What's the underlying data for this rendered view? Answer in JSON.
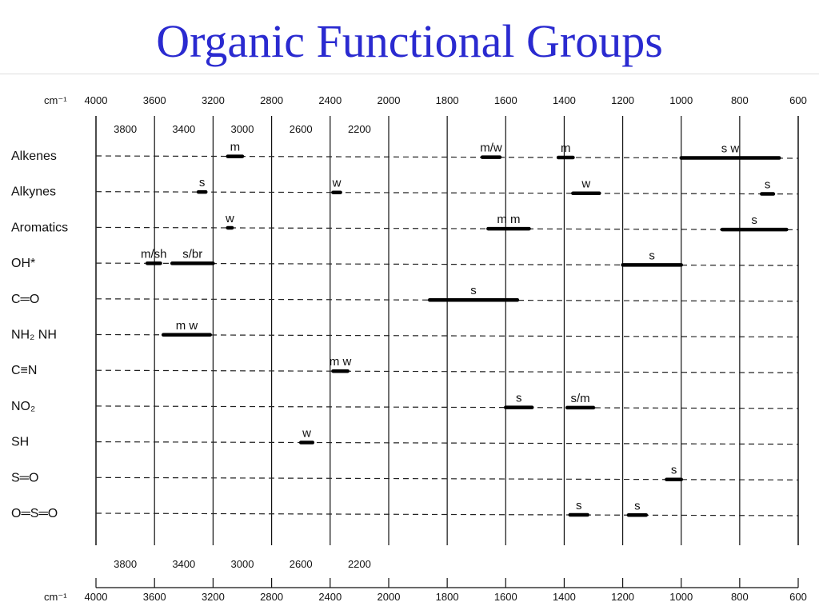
{
  "title": "Organic Functional Groups",
  "chart_data": {
    "type": "bar",
    "unit_label": "cm⁻¹",
    "x_major_ticks": [
      4000,
      3600,
      3200,
      2800,
      2400,
      2000,
      1800,
      1600,
      1400,
      1200,
      1000,
      800,
      600
    ],
    "x_minor_ticks": [
      3800,
      3400,
      3000,
      2600,
      2200
    ],
    "groups": [
      "Alkenes",
      "Alkynes",
      "Aromatics",
      "OH*",
      "C═O",
      "NH₂ NH",
      "C≡N",
      "NO₂",
      "SH",
      "S═O",
      "O═S═O"
    ],
    "bands": [
      {
        "group": "Alkenes",
        "from": 3100,
        "to": 3000,
        "label": "m"
      },
      {
        "group": "Alkenes",
        "from": 1680,
        "to": 1620,
        "label": "m/w"
      },
      {
        "group": "Alkenes",
        "from": 1420,
        "to": 1370,
        "label": "m"
      },
      {
        "group": "Alkenes",
        "from": 1000,
        "to": 665,
        "label": "s w"
      },
      {
        "group": "Alkynes",
        "from": 3300,
        "to": 3250,
        "label": "s"
      },
      {
        "group": "Alkynes",
        "from": 2380,
        "to": 2330,
        "label": "w"
      },
      {
        "group": "Alkynes",
        "from": 1370,
        "to": 1280,
        "label": "w"
      },
      {
        "group": "Alkynes",
        "from": 725,
        "to": 685,
        "label": "s"
      },
      {
        "group": "Aromatics",
        "from": 3100,
        "to": 3070,
        "label": "w"
      },
      {
        "group": "Aromatics",
        "from": 1660,
        "to": 1520,
        "label": "m m"
      },
      {
        "group": "Aromatics",
        "from": 860,
        "to": 640,
        "label": "s"
      },
      {
        "group": "OH*",
        "from": 3650,
        "to": 3560,
        "label": "m/sh"
      },
      {
        "group": "OH*",
        "from": 3480,
        "to": 3200,
        "label": "s/br"
      },
      {
        "group": "OH*",
        "from": 1200,
        "to": 1000,
        "label": "s"
      },
      {
        "group": "C═O",
        "from": 1860,
        "to": 1560,
        "label": "s"
      },
      {
        "group": "NH₂ NH",
        "from": 3540,
        "to": 3220,
        "label": "m w"
      },
      {
        "group": "C≡N",
        "from": 2380,
        "to": 2280,
        "label": "m w"
      },
      {
        "group": "NO₂",
        "from": 1600,
        "to": 1510,
        "label": "s"
      },
      {
        "group": "NO₂",
        "from": 1390,
        "to": 1300,
        "label": "s/m"
      },
      {
        "group": "SH",
        "from": 2600,
        "to": 2520,
        "label": "w"
      },
      {
        "group": "S═O",
        "from": 1050,
        "to": 1000,
        "label": "s"
      },
      {
        "group": "O═S═O",
        "from": 1380,
        "to": 1320,
        "label": "s"
      },
      {
        "group": "O═S═O",
        "from": 1180,
        "to": 1120,
        "label": "s"
      }
    ]
  }
}
